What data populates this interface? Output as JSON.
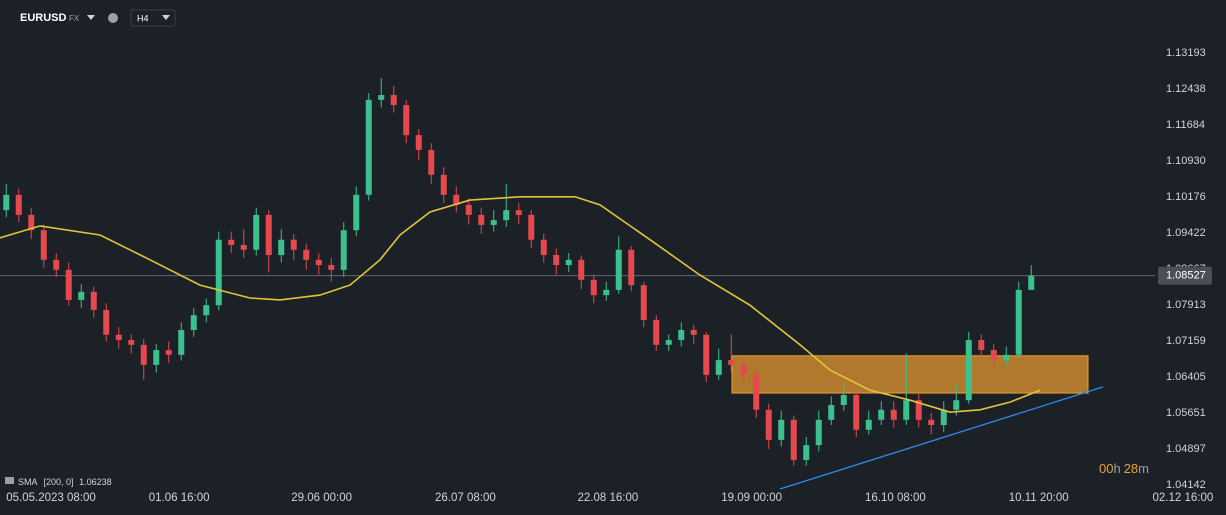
{
  "header": {
    "symbol": "EURUSD",
    "market": "FX",
    "interval": "H4"
  },
  "chart_data": {
    "type": "candlestick",
    "up_color": "#3cc08d",
    "down_color": "#e5484d",
    "open": [
      1.099,
      1.1022,
      1.098,
      1.0948,
      1.0886,
      1.0865,
      1.0802,
      1.0819,
      1.0781,
      1.0729,
      1.0718,
      1.0708,
      1.0666,
      1.0697,
      1.0687,
      1.0739,
      1.077,
      1.0791,
      1.0928,
      1.0917,
      1.0907,
      1.098,
      1.0896,
      1.0928,
      1.0907,
      1.0886,
      1.0875,
      1.0865,
      1.0948,
      1.1022,
      1.1221,
      1.1231,
      1.121,
      1.1147,
      1.1116,
      1.1064,
      1.1022,
      1.1001,
      1.098,
      1.0959,
      1.0969,
      1.099,
      1.098,
      1.0928,
      1.0896,
      1.0875,
      1.0886,
      1.0844,
      1.0812,
      1.0823,
      1.0907,
      1.0833,
      1.076,
      1.0708,
      1.0718,
      1.0739,
      1.0729,
      1.0645,
      1.0676,
      1.0666,
      1.0645,
      1.0572,
      1.0509,
      1.0551,
      1.0467,
      1.0498,
      1.0551,
      1.0582,
      1.0603,
      1.053,
      1.0551,
      1.0572,
      1.0551,
      1.0592,
      1.0551,
      1.054,
      1.0572,
      1.0592,
      1.0718,
      1.0697,
      1.0676,
      1.0687,
      1.0823
    ],
    "high": [
      1.1045,
      1.1035,
      1.0995,
      1.096,
      1.09,
      1.088,
      1.0835,
      1.083,
      1.0795,
      1.0745,
      1.073,
      1.072,
      1.071,
      1.0715,
      1.0755,
      1.0785,
      1.0805,
      1.0945,
      1.0945,
      1.095,
      1.0995,
      1.099,
      1.095,
      1.094,
      1.092,
      1.09,
      1.089,
      1.0965,
      1.104,
      1.1235,
      1.1267,
      1.125,
      1.122,
      1.116,
      1.113,
      1.108,
      1.104,
      1.1015,
      1.0995,
      1.099,
      1.1045,
      1.1005,
      1.099,
      1.094,
      1.091,
      1.09,
      1.0895,
      1.0855,
      1.084,
      1.0935,
      1.0915,
      1.084,
      1.077,
      1.073,
      1.0755,
      1.075,
      1.0735,
      1.07,
      1.073,
      1.068,
      1.0655,
      1.0585,
      1.057,
      1.056,
      1.0515,
      1.057,
      1.06,
      1.063,
      1.061,
      1.057,
      1.059,
      1.059,
      1.069,
      1.0605,
      1.0565,
      1.059,
      1.0625,
      1.0735,
      1.073,
      1.071,
      1.0705,
      1.084,
      1.0875
    ],
    "low": [
      1.0975,
      1.0965,
      1.093,
      1.087,
      1.085,
      1.079,
      1.0785,
      1.0765,
      1.0715,
      1.07,
      1.069,
      1.0635,
      1.065,
      1.067,
      1.0675,
      1.0725,
      1.0755,
      1.078,
      1.09,
      1.089,
      1.0895,
      1.086,
      1.088,
      1.0885,
      1.0865,
      1.0855,
      1.084,
      1.085,
      1.0935,
      1.101,
      1.1205,
      1.1195,
      1.113,
      1.1095,
      1.1045,
      1.1005,
      1.0985,
      1.096,
      1.094,
      1.0945,
      1.0955,
      1.096,
      1.091,
      1.088,
      1.0855,
      1.086,
      1.0825,
      1.0795,
      1.08,
      1.0815,
      1.082,
      1.0745,
      1.0695,
      1.0695,
      1.0705,
      1.071,
      1.063,
      1.0635,
      1.065,
      1.0625,
      1.0555,
      1.049,
      1.0495,
      1.0455,
      1.0455,
      1.0485,
      1.054,
      1.057,
      1.0515,
      1.052,
      1.054,
      1.0535,
      1.054,
      1.0535,
      1.052,
      1.0525,
      1.056,
      1.0585,
      1.068,
      1.066,
      1.0665,
      1.068,
      1.083
    ],
    "close": [
      1.1022,
      1.098,
      1.0948,
      1.0886,
      1.0865,
      1.0802,
      1.0819,
      1.0781,
      1.0729,
      1.0718,
      1.0708,
      1.0666,
      1.0697,
      1.0687,
      1.0739,
      1.077,
      1.0791,
      1.0928,
      1.0917,
      1.0907,
      1.098,
      1.0896,
      1.0928,
      1.0907,
      1.0886,
      1.0875,
      1.0865,
      1.0948,
      1.1022,
      1.1221,
      1.1231,
      1.121,
      1.1147,
      1.1116,
      1.1064,
      1.1022,
      1.1001,
      1.098,
      1.0959,
      1.0969,
      1.099,
      1.098,
      1.0928,
      1.0896,
      1.0875,
      1.0886,
      1.0844,
      1.0812,
      1.0823,
      1.0907,
      1.0833,
      1.076,
      1.0708,
      1.0718,
      1.0739,
      1.0729,
      1.0645,
      1.0676,
      1.0666,
      1.0645,
      1.0572,
      1.0509,
      1.0551,
      1.0467,
      1.0498,
      1.0551,
      1.0582,
      1.0603,
      1.053,
      1.0551,
      1.0572,
      1.0551,
      1.0592,
      1.0551,
      1.054,
      1.0572,
      1.0592,
      1.0718,
      1.0697,
      1.0676,
      1.0687,
      1.0823,
      1.0853
    ],
    "xlim": [
      -0.5,
      97.5
    ],
    "xticks": [
      {
        "value": 0,
        "label": "05.05.2023 08:00"
      },
      {
        "value": 11.4,
        "label": "01.06 16:00"
      },
      {
        "value": 22.8,
        "label": "29.06 00:00"
      },
      {
        "value": 34.3,
        "label": "26.07 08:00"
      },
      {
        "value": 45.7,
        "label": "22.08 16:00"
      },
      {
        "value": 57.2,
        "label": "19.09 00:00"
      },
      {
        "value": 68.7,
        "label": "16.10 08:00"
      },
      {
        "value": 80.2,
        "label": "10.11 20:00"
      },
      {
        "value": 91.7,
        "label": "02.12 16:00"
      }
    ],
    "ylim": [
      1.0404,
      1.143
    ],
    "yticks": [
      1.13193,
      1.12438,
      1.11684,
      {
        "value": 1.1093,
        "label": "1.10930"
      },
      1.10176,
      1.09422,
      1.08667,
      1.07913,
      1.07159,
      1.06405,
      1.05651,
      1.04897,
      1.04142
    ],
    "grid": false,
    "last_price": 1.08527,
    "sma": {
      "name": "SMA",
      "params": "[200, 0]",
      "value": 1.06238,
      "color": "#e3c439",
      "x": [
        -0.5,
        2.7,
        7.5,
        11.5,
        15.5,
        19.5,
        21.9,
        25.1,
        27.5,
        29.9,
        31.5,
        33.9,
        37.1,
        41.1,
        45.5,
        47.5,
        51.5,
        55.5,
        59.5,
        63.5,
        65.9,
        69.1,
        72.3,
        75.5,
        77.9,
        80.3,
        82.7
      ],
      "values": [
        1.0932,
        1.0957,
        1.0938,
        1.0886,
        1.0833,
        1.0806,
        1.0802,
        1.0812,
        1.0833,
        1.0886,
        1.0938,
        1.0986,
        1.1011,
        1.1018,
        1.1018,
        1.1001,
        1.0928,
        1.0854,
        1.0791,
        1.0708,
        1.0655,
        1.0613,
        1.0592,
        1.0567,
        1.0572,
        1.0588,
        1.0613
      ]
    },
    "zone": {
      "x0": 58.06,
      "x1": 86.54,
      "top": 1.0685,
      "bottom": 1.0607,
      "color": "#f0a030"
    },
    "trendline": {
      "x0": 61.9,
      "x1": 87.74,
      "y0": 1.0406,
      "y1": 1.062,
      "color": "#2d8ceb"
    },
    "countdown": [
      "00",
      "h",
      "28",
      "m"
    ]
  }
}
